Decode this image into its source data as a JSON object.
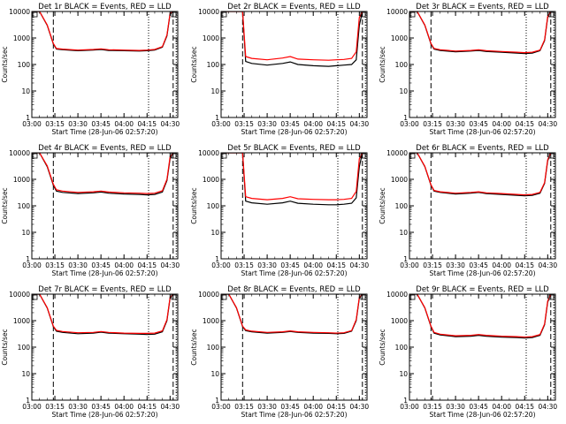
{
  "figure": {
    "background": "#ffffff",
    "colors": {
      "events": "#000000",
      "lld": "#ff0000",
      "axes": "#000000"
    }
  },
  "chart_data": [
    {
      "type": "line",
      "title": "Det 1r BLACK = Events, RED = LLD",
      "xlabel": "Start Time (28-Jun-06 02:57:20)",
      "ylabel": "Counts/sec",
      "x_ticks": [
        "03:00",
        "03:15",
        "03:30",
        "03:45",
        "04:00",
        "04:15",
        "04:30"
      ],
      "y_ticks": [
        "1",
        "10",
        "100",
        "1000",
        "10000"
      ],
      "ylim": [
        1,
        10000
      ],
      "y_scale": "log",
      "grid": false,
      "x": [
        "03:00",
        "03:05",
        "03:10",
        "03:14",
        "03:16",
        "03:20",
        "03:30",
        "03:40",
        "03:45",
        "03:50",
        "04:00",
        "04:10",
        "04:15",
        "04:20",
        "04:25",
        "04:28",
        "04:30",
        "04:32"
      ],
      "series": [
        {
          "name": "Events",
          "color": "#000000",
          "values": [
            10000,
            10000,
            3000,
            600,
            380,
            360,
            330,
            350,
            370,
            340,
            330,
            320,
            330,
            350,
            450,
            1200,
            8000,
            10000
          ]
        },
        {
          "name": "LLD",
          "color": "#ff0000",
          "values": [
            10000,
            10000,
            3100,
            620,
            400,
            380,
            350,
            370,
            390,
            360,
            350,
            340,
            350,
            370,
            470,
            1300,
            8500,
            10000
          ]
        }
      ],
      "dashed_vlines": [
        "03:14",
        "04:32"
      ],
      "dotted_vlines": [
        "04:16",
        "04:34"
      ]
    },
    {
      "type": "line",
      "title": "Det 2r BLACK = Events, RED = LLD",
      "xlabel": "Start Time (28-Jun-06 02:57:20)",
      "ylabel": "Counts/sec",
      "x_ticks": [
        "03:00",
        "03:15",
        "03:30",
        "03:45",
        "04:00",
        "04:15",
        "04:30"
      ],
      "y_ticks": [
        "1",
        "10",
        "100",
        "1000",
        "10000"
      ],
      "ylim": [
        1,
        10000
      ],
      "y_scale": "log",
      "grid": false,
      "x": [
        "03:00",
        "03:05",
        "03:10",
        "03:14",
        "03:16",
        "03:20",
        "03:30",
        "03:40",
        "03:45",
        "03:50",
        "04:00",
        "04:10",
        "04:15",
        "04:20",
        "04:25",
        "04:28",
        "04:30",
        "04:32"
      ],
      "series": [
        {
          "name": "Events",
          "color": "#000000",
          "values": [
            10000,
            10000,
            10000,
            10000,
            130,
            110,
            95,
            110,
            125,
            100,
            90,
            85,
            90,
            95,
            100,
            150,
            3000,
            10000
          ]
        },
        {
          "name": "LLD",
          "color": "#ff0000",
          "values": [
            10000,
            10000,
            10000,
            10000,
            200,
            170,
            150,
            175,
            200,
            160,
            150,
            145,
            150,
            155,
            170,
            300,
            6000,
            10000
          ]
        }
      ],
      "dashed_vlines": [
        "03:14",
        "04:32"
      ],
      "dotted_vlines": [
        "04:16",
        "04:34"
      ]
    },
    {
      "type": "line",
      "title": "Det 3r BLACK = Events, RED = LLD",
      "xlabel": "Start Time (28-Jun-06 02:57:20)",
      "ylabel": "Counts/sec",
      "x_ticks": [
        "03:00",
        "03:15",
        "03:30",
        "03:45",
        "04:00",
        "04:15",
        "04:30"
      ],
      "y_ticks": [
        "1",
        "10",
        "100",
        "1000",
        "10000"
      ],
      "ylim": [
        1,
        10000
      ],
      "y_scale": "log",
      "grid": false,
      "x": [
        "03:00",
        "03:05",
        "03:10",
        "03:14",
        "03:16",
        "03:20",
        "03:30",
        "03:40",
        "03:45",
        "03:50",
        "04:00",
        "04:10",
        "04:15",
        "04:20",
        "04:25",
        "04:28",
        "04:30",
        "04:32"
      ],
      "series": [
        {
          "name": "Events",
          "color": "#000000",
          "values": [
            10000,
            10000,
            3000,
            600,
            380,
            340,
            300,
            320,
            340,
            310,
            290,
            270,
            260,
            270,
            330,
            800,
            6000,
            10000
          ]
        },
        {
          "name": "LLD",
          "color": "#ff0000",
          "values": [
            10000,
            10000,
            3100,
            620,
            400,
            360,
            320,
            340,
            360,
            330,
            310,
            290,
            280,
            290,
            350,
            850,
            6500,
            10000
          ]
        }
      ],
      "dashed_vlines": [
        "03:14",
        "04:32"
      ],
      "dotted_vlines": [
        "04:16",
        "04:34"
      ]
    },
    {
      "type": "line",
      "title": "Det 4r BLACK = Events, RED = LLD",
      "xlabel": "Start Time (28-Jun-06 02:57:20)",
      "ylabel": "Counts/sec",
      "x_ticks": [
        "03:00",
        "03:15",
        "03:30",
        "03:45",
        "04:00",
        "04:15",
        "04:30"
      ],
      "y_ticks": [
        "1",
        "10",
        "100",
        "1000",
        "10000"
      ],
      "ylim": [
        1,
        10000
      ],
      "y_scale": "log",
      "grid": false,
      "x": [
        "03:00",
        "03:05",
        "03:10",
        "03:14",
        "03:16",
        "03:20",
        "03:30",
        "03:40",
        "03:45",
        "03:50",
        "04:00",
        "04:10",
        "04:15",
        "04:20",
        "04:25",
        "04:28",
        "04:30",
        "04:32"
      ],
      "series": [
        {
          "name": "Events",
          "color": "#000000",
          "values": [
            10000,
            10000,
            3000,
            600,
            360,
            320,
            290,
            310,
            330,
            300,
            280,
            270,
            260,
            270,
            330,
            900,
            6000,
            10000
          ]
        },
        {
          "name": "LLD",
          "color": "#ff0000",
          "values": [
            10000,
            10000,
            3200,
            650,
            400,
            360,
            320,
            340,
            360,
            330,
            310,
            300,
            290,
            300,
            370,
            1000,
            7000,
            10000
          ]
        }
      ],
      "dashed_vlines": [
        "03:14",
        "04:32"
      ],
      "dotted_vlines": [
        "04:16",
        "04:34"
      ]
    },
    {
      "type": "line",
      "title": "Det 5r BLACK = Events, RED = LLD",
      "xlabel": "Start Time (28-Jun-06 02:57:20)",
      "ylabel": "Counts/sec",
      "x_ticks": [
        "03:00",
        "03:15",
        "03:30",
        "03:45",
        "04:00",
        "04:15",
        "04:30"
      ],
      "y_ticks": [
        "1",
        "10",
        "100",
        "1000",
        "10000"
      ],
      "ylim": [
        1,
        10000
      ],
      "y_scale": "log",
      "grid": false,
      "x": [
        "03:00",
        "03:05",
        "03:10",
        "03:14",
        "03:16",
        "03:20",
        "03:30",
        "03:40",
        "03:45",
        "03:50",
        "04:00",
        "04:10",
        "04:15",
        "04:20",
        "04:25",
        "04:28",
        "04:30",
        "04:32"
      ],
      "series": [
        {
          "name": "Events",
          "color": "#000000",
          "values": [
            10000,
            10000,
            10000,
            10000,
            150,
            130,
            115,
            130,
            150,
            125,
            115,
            110,
            110,
            115,
            125,
            200,
            3000,
            10000
          ]
        },
        {
          "name": "LLD",
          "color": "#ff0000",
          "values": [
            10000,
            10000,
            10000,
            10000,
            220,
            190,
            170,
            190,
            220,
            185,
            175,
            170,
            170,
            175,
            190,
            350,
            6000,
            10000
          ]
        }
      ],
      "dashed_vlines": [
        "03:14",
        "04:32"
      ],
      "dotted_vlines": [
        "04:16",
        "04:34"
      ]
    },
    {
      "type": "line",
      "title": "Det 6r BLACK = Events, RED = LLD",
      "xlabel": "Start Time (28-Jun-06 02:57:20)",
      "ylabel": "Counts/sec",
      "x_ticks": [
        "03:00",
        "03:15",
        "03:30",
        "03:45",
        "04:00",
        "04:15",
        "04:30"
      ],
      "y_ticks": [
        "1",
        "10",
        "100",
        "1000",
        "10000"
      ],
      "ylim": [
        1,
        10000
      ],
      "y_scale": "log",
      "grid": false,
      "x": [
        "03:00",
        "03:05",
        "03:10",
        "03:14",
        "03:16",
        "03:20",
        "03:30",
        "03:40",
        "03:45",
        "03:50",
        "04:00",
        "04:10",
        "04:15",
        "04:20",
        "04:25",
        "04:28",
        "04:30",
        "04:32"
      ],
      "series": [
        {
          "name": "Events",
          "color": "#000000",
          "values": [
            10000,
            10000,
            3000,
            600,
            360,
            320,
            280,
            300,
            320,
            290,
            270,
            250,
            240,
            250,
            300,
            700,
            5000,
            10000
          ]
        },
        {
          "name": "LLD",
          "color": "#ff0000",
          "values": [
            10000,
            10000,
            3100,
            620,
            380,
            340,
            300,
            320,
            340,
            310,
            290,
            270,
            260,
            270,
            320,
            750,
            5500,
            10000
          ]
        }
      ],
      "dashed_vlines": [
        "03:14",
        "04:32"
      ],
      "dotted_vlines": [
        "04:16",
        "04:34"
      ]
    },
    {
      "type": "line",
      "title": "Det 7r BLACK = Events, RED = LLD",
      "xlabel": "Start Time (28-Jun-06 02:57:20)",
      "ylabel": "Counts/sec",
      "x_ticks": [
        "03:00",
        "03:15",
        "03:30",
        "03:45",
        "04:00",
        "04:15",
        "04:30"
      ],
      "y_ticks": [
        "1",
        "10",
        "100",
        "1000",
        "10000"
      ],
      "ylim": [
        1,
        10000
      ],
      "y_scale": "log",
      "grid": false,
      "x": [
        "03:00",
        "03:05",
        "03:10",
        "03:14",
        "03:16",
        "03:20",
        "03:30",
        "03:40",
        "03:45",
        "03:50",
        "04:00",
        "04:10",
        "04:15",
        "04:20",
        "04:25",
        "04:28",
        "04:30",
        "04:32"
      ],
      "series": [
        {
          "name": "Events",
          "color": "#000000",
          "values": [
            10000,
            10000,
            3000,
            600,
            400,
            360,
            320,
            340,
            370,
            340,
            320,
            310,
            300,
            310,
            380,
            1000,
            7000,
            10000
          ]
        },
        {
          "name": "LLD",
          "color": "#ff0000",
          "values": [
            10000,
            10000,
            3100,
            620,
            430,
            390,
            350,
            360,
            390,
            360,
            340,
            330,
            330,
            340,
            410,
            1100,
            7500,
            10000
          ]
        }
      ],
      "dashed_vlines": [
        "03:14",
        "04:32"
      ],
      "dotted_vlines": [
        "04:16",
        "04:34"
      ]
    },
    {
      "type": "line",
      "title": "Det 8r BLACK = Events, RED = LLD",
      "xlabel": "Start Time (28-Jun-06 02:57:20)",
      "ylabel": "Counts/sec",
      "x_ticks": [
        "03:00",
        "03:15",
        "03:30",
        "03:45",
        "04:00",
        "04:15",
        "04:30"
      ],
      "y_ticks": [
        "1",
        "10",
        "100",
        "1000",
        "10000"
      ],
      "ylim": [
        1,
        10000
      ],
      "y_scale": "log",
      "grid": false,
      "x": [
        "03:00",
        "03:05",
        "03:10",
        "03:14",
        "03:16",
        "03:20",
        "03:30",
        "03:40",
        "03:45",
        "03:50",
        "04:00",
        "04:10",
        "04:15",
        "04:20",
        "04:25",
        "04:28",
        "04:30",
        "04:32"
      ],
      "series": [
        {
          "name": "Events",
          "color": "#000000",
          "values": [
            10000,
            10000,
            3000,
            600,
            420,
            380,
            340,
            360,
            390,
            360,
            340,
            330,
            320,
            330,
            400,
            1000,
            7000,
            10000
          ]
        },
        {
          "name": "LLD",
          "color": "#ff0000",
          "values": [
            10000,
            10000,
            3100,
            620,
            450,
            400,
            360,
            380,
            410,
            380,
            360,
            350,
            340,
            350,
            420,
            1100,
            7500,
            10000
          ]
        }
      ],
      "dashed_vlines": [
        "03:14",
        "04:32"
      ],
      "dotted_vlines": [
        "04:16",
        "04:34"
      ]
    },
    {
      "type": "line",
      "title": "Det 9r BLACK = Events, RED = LLD",
      "xlabel": "Start Time (28-Jun-06 02:57:20)",
      "ylabel": "Counts/sec",
      "x_ticks": [
        "03:00",
        "03:15",
        "03:30",
        "03:45",
        "04:00",
        "04:15",
        "04:30"
      ],
      "y_ticks": [
        "1",
        "10",
        "100",
        "1000",
        "10000"
      ],
      "ylim": [
        1,
        10000
      ],
      "y_scale": "log",
      "grid": false,
      "x": [
        "03:00",
        "03:05",
        "03:10",
        "03:14",
        "03:16",
        "03:20",
        "03:30",
        "03:40",
        "03:45",
        "03:50",
        "04:00",
        "04:10",
        "04:15",
        "04:20",
        "04:25",
        "04:28",
        "04:30",
        "04:32"
      ],
      "series": [
        {
          "name": "Events",
          "color": "#000000",
          "values": [
            10000,
            10000,
            3000,
            600,
            340,
            290,
            250,
            260,
            280,
            260,
            240,
            230,
            220,
            230,
            280,
            700,
            5000,
            10000
          ]
        },
        {
          "name": "LLD",
          "color": "#ff0000",
          "values": [
            10000,
            10000,
            3100,
            620,
            360,
            310,
            270,
            280,
            300,
            280,
            260,
            250,
            240,
            250,
            300,
            750,
            5500,
            10000
          ]
        }
      ],
      "dashed_vlines": [
        "03:14",
        "04:32"
      ],
      "dotted_vlines": [
        "04:16",
        "04:34"
      ]
    }
  ]
}
